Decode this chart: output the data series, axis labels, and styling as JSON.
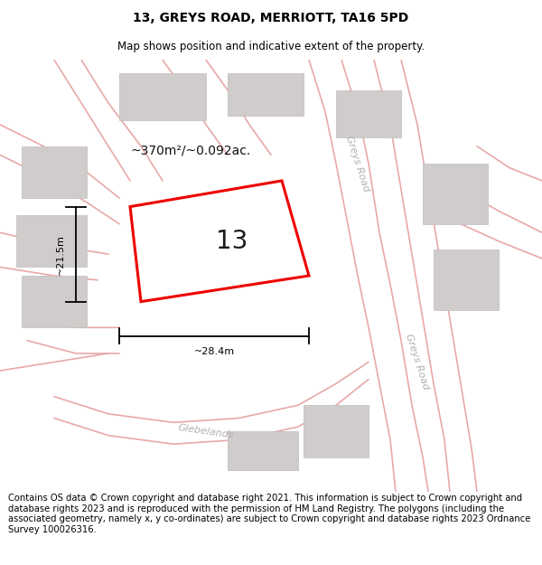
{
  "title": "13, GREYS ROAD, MERRIOTT, TA16 5PD",
  "subtitle": "Map shows position and indicative extent of the property.",
  "footer": "Contains OS data © Crown copyright and database right 2021. This information is subject to Crown copyright and database rights 2023 and is reproduced with the permission of HM Land Registry. The polygons (including the associated geometry, namely x, y co-ordinates) are subject to Crown copyright and database rights 2023 Ordnance Survey 100026316.",
  "area_label": "~370m²/~0.092ac.",
  "dim_width_label": "~28.4m",
  "dim_height_label": "~21.5m",
  "property_number": "13",
  "bg_color": "#ffffff",
  "map_bg": "#ffffff",
  "road_color": "#e8a8a8",
  "building_color": "#d0cccc",
  "building_edge": "#c0bcbc",
  "property_polygon_color": "#ee0000",
  "property_fill_color": "#ffffff",
  "dim_color": "#000000",
  "road_label_color": "#b0b0b0",
  "title_fontsize": 10,
  "subtitle_fontsize": 8.5,
  "footer_fontsize": 7.2,
  "prop_number_fontsize": 20,
  "area_label_fontsize": 10,
  "dim_label_fontsize": 8
}
